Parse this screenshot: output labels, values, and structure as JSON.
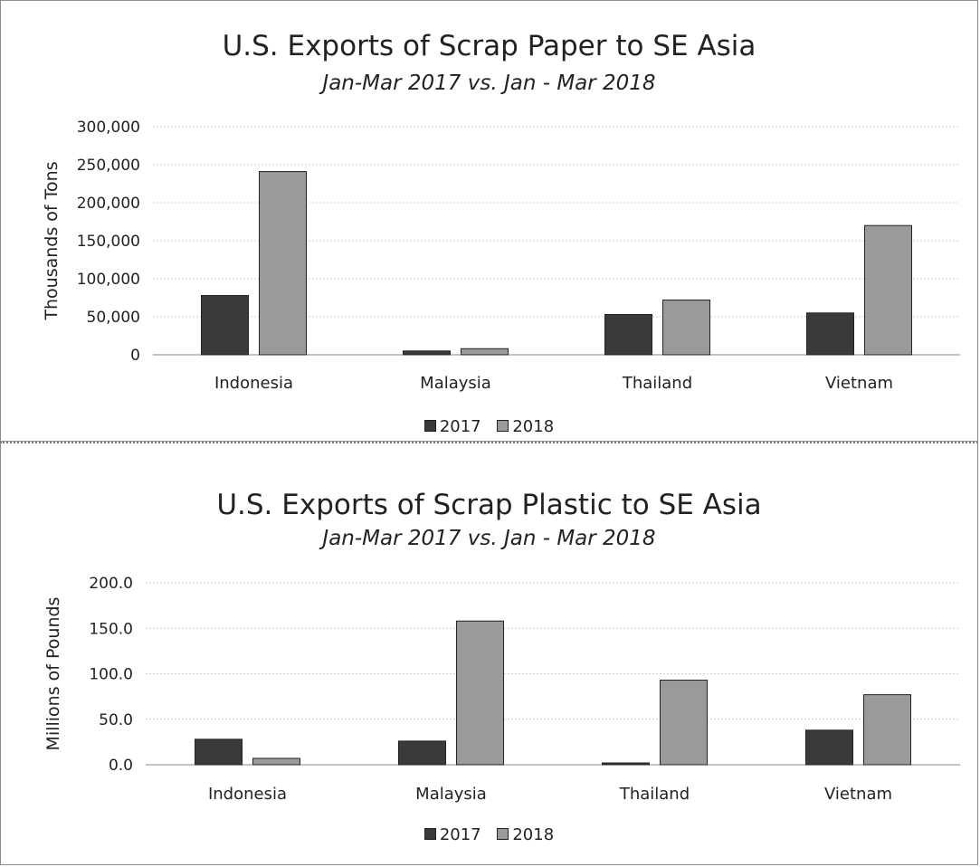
{
  "chart_data": [
    {
      "type": "bar",
      "title": "U.S. Exports of Scrap Paper to SE Asia",
      "subtitle": "Jan-Mar 2017 vs. Jan - Mar 2018",
      "ylabel": "Thousands of Tons",
      "categories": [
        "Indonesia",
        "Malaysia",
        "Thailand",
        "Vietnam"
      ],
      "ylim": [
        0,
        300000
      ],
      "yticks": [
        0,
        50000,
        100000,
        150000,
        200000,
        250000,
        300000
      ],
      "ytick_labels": [
        "0",
        "50,000",
        "100,000",
        "150,000",
        "200,000",
        "250,000",
        "300,000"
      ],
      "series": [
        {
          "name": "2017",
          "values": [
            78000,
            5000,
            53000,
            55000
          ],
          "color": "#3a3a3a"
        },
        {
          "name": "2018",
          "values": [
            241000,
            8000,
            72000,
            170000
          ],
          "color": "#9a9a9a"
        }
      ],
      "grid": true,
      "legend": "bottom"
    },
    {
      "type": "bar",
      "title": "U.S. Exports of Scrap Plastic to SE Asia",
      "subtitle": "Jan-Mar 2017 vs. Jan - Mar 2018",
      "ylabel": "Millions of Pounds",
      "categories": [
        "Indonesia",
        "Malaysia",
        "Thailand",
        "Vietnam"
      ],
      "ylim": [
        0,
        200
      ],
      "yticks": [
        0,
        50,
        100,
        150,
        200
      ],
      "ytick_labels": [
        "0.0",
        "50.0",
        "100.0",
        "150.0",
        "200.0"
      ],
      "series": [
        {
          "name": "2017",
          "values": [
            28,
            26,
            2,
            38
          ],
          "color": "#3a3a3a"
        },
        {
          "name": "2018",
          "values": [
            7,
            158,
            93,
            77
          ],
          "color": "#9a9a9a"
        }
      ],
      "grid": true,
      "legend": "bottom"
    }
  ]
}
